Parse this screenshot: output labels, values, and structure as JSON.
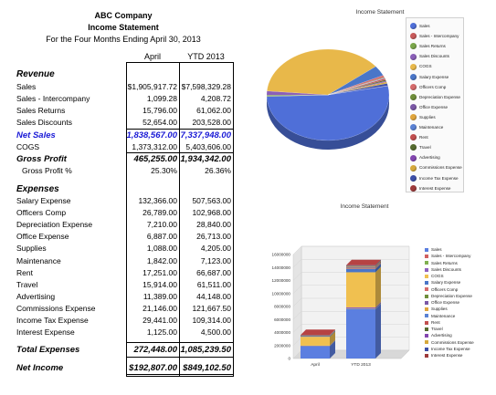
{
  "report": {
    "company": "ABC Company",
    "title": "Income Statement",
    "period": "For the Four Months Ending April 30, 2013",
    "col_april": "April",
    "col_ytd": "YTD 2013",
    "revenue_heading": "Revenue",
    "expenses_heading": "Expenses",
    "revenue": [
      {
        "label": "Sales",
        "april": "$1,905,917.72",
        "ytd": "$7,598,329.28"
      },
      {
        "label": "Sales - Intercompany",
        "april": "1,099.28",
        "ytd": "4,208.72"
      },
      {
        "label": "Sales Returns",
        "april": "15,796.00",
        "ytd": "61,062.00"
      },
      {
        "label": "Sales Discounts",
        "april": "52,654.00",
        "ytd": "203,528.00"
      }
    ],
    "net_sales": {
      "label": "Net Sales",
      "april": "1,838,567.00",
      "ytd": "7,337,948.00"
    },
    "cogs": {
      "label": "COGS",
      "april": "1,373,312.00",
      "ytd": "5,403,606.00"
    },
    "gross_profit": {
      "label": "Gross Profit",
      "april": "465,255.00",
      "ytd": "1,934,342.00"
    },
    "gross_profit_pct": {
      "label": "Gross Profit %",
      "april": "25.30%",
      "ytd": "26.36%"
    },
    "expenses": [
      {
        "label": "Salary Expense",
        "april": "132,366.00",
        "ytd": "507,563.00"
      },
      {
        "label": "Officers Comp",
        "april": "26,789.00",
        "ytd": "102,968.00"
      },
      {
        "label": "Depreciation Expense",
        "april": "7,210.00",
        "ytd": "28,840.00"
      },
      {
        "label": "Office Expense",
        "april": "6,887.00",
        "ytd": "26,713.00"
      },
      {
        "label": "Supplies",
        "april": "1,088.00",
        "ytd": "4,205.00"
      },
      {
        "label": "Maintenance",
        "april": "1,842.00",
        "ytd": "7,123.00"
      },
      {
        "label": "Rent",
        "april": "17,251.00",
        "ytd": "66,687.00"
      },
      {
        "label": "Travel",
        "april": "15,914.00",
        "ytd": "61,511.00"
      },
      {
        "label": "Advertising",
        "april": "11,389.00",
        "ytd": "44,148.00"
      },
      {
        "label": "Commissions Expense",
        "april": "21,146.00",
        "ytd": "121,667.50"
      },
      {
        "label": "Income Tax Expense",
        "april": "29,441.00",
        "ytd": "109,314.00"
      },
      {
        "label": "Interest Expense",
        "april": "1,125.00",
        "ytd": "4,500.00"
      }
    ],
    "total_expenses": {
      "label": "Total Expenses",
      "april": "272,448.00",
      "ytd": "1,085,239.50"
    },
    "net_income": {
      "label": "Net Income",
      "april": "$192,807.00",
      "ytd": "$849,102.50"
    }
  },
  "chart_data": [
    {
      "type": "pie",
      "title": "Income Statement",
      "legend_position": "right",
      "labels": [
        "Sales",
        "Sales - Intercompany",
        "Sales Returns",
        "Sales Discounts",
        "COGS",
        "Salary Expense",
        "Officers Comp",
        "Depreciation Expense",
        "Office Expense",
        "Supplies",
        "Maintenance",
        "Rent",
        "Travel",
        "Advertising",
        "Commissions Expense",
        "Income Tax Expense",
        "Interest Expense"
      ],
      "colors": [
        "#4f6fd8",
        "#c85a5a",
        "#7aa64a",
        "#8a5fb8",
        "#e8b84a",
        "#4a76c8",
        "#d56b6b",
        "#6f8e3a",
        "#7b58a6",
        "#e0a53c",
        "#5a82d4",
        "#c24f4f",
        "#556b2f",
        "#8346b0",
        "#d6a93c",
        "#3d4fa8",
        "#9e3a3a"
      ],
      "values": [
        1905917.72,
        1099.28,
        15796.0,
        52654.0,
        1373312.0,
        132366.0,
        26789.0,
        7210.0,
        6887.0,
        1088.0,
        1842.0,
        17251.0,
        15914.0,
        11389.0,
        21146.0,
        29441.0,
        1125.0
      ]
    },
    {
      "type": "bar",
      "stacked": true,
      "title": "Income Statement",
      "categories": [
        "April",
        "YTD 2013"
      ],
      "ylim": [
        0,
        16000000
      ],
      "yticks": [
        "16000000",
        "14000000",
        "12000000",
        "10000000",
        "8000000",
        "6000000",
        "4000000",
        "2000000",
        "0"
      ],
      "legend_position": "right",
      "series": [
        {
          "name": "Sales",
          "color": "#5b7fe0",
          "values": [
            1905917.72,
            7598329.28
          ]
        },
        {
          "name": "Sales - Intercompany",
          "color": "#d06060",
          "values": [
            1099.28,
            4208.72
          ]
        },
        {
          "name": "Sales Returns",
          "color": "#80b050",
          "values": [
            15796.0,
            61062.0
          ]
        },
        {
          "name": "Sales Discounts",
          "color": "#9060c0",
          "values": [
            52654.0,
            203528.0
          ]
        },
        {
          "name": "COGS",
          "color": "#f0c050",
          "values": [
            1373312.0,
            5403606.0
          ]
        },
        {
          "name": "Salary Expense",
          "color": "#4a76c8",
          "values": [
            132366.0,
            507563.0
          ]
        },
        {
          "name": "Officers Comp",
          "color": "#d56b6b",
          "values": [
            26789.0,
            102968.0
          ]
        },
        {
          "name": "Depreciation Expense",
          "color": "#6f8e3a",
          "values": [
            7210.0,
            28840.0
          ]
        },
        {
          "name": "Office Expense",
          "color": "#7b58a6",
          "values": [
            6887.0,
            26713.0
          ]
        },
        {
          "name": "Supplies",
          "color": "#e0a53c",
          "values": [
            1088.0,
            4205.0
          ]
        },
        {
          "name": "Maintenance",
          "color": "#5a82d4",
          "values": [
            1842.0,
            7123.0
          ]
        },
        {
          "name": "Rent",
          "color": "#c24f4f",
          "values": [
            17251.0,
            66687.0
          ]
        },
        {
          "name": "Travel",
          "color": "#556b2f",
          "values": [
            15914.0,
            61511.0
          ]
        },
        {
          "name": "Advertising",
          "color": "#8346b0",
          "values": [
            11389.0,
            44148.0
          ]
        },
        {
          "name": "Commissions Expense",
          "color": "#d6a93c",
          "values": [
            21146.0,
            121667.5
          ]
        },
        {
          "name": "Income Tax Expense",
          "color": "#3d4fa8",
          "values": [
            29441.0,
            109314.0
          ]
        },
        {
          "name": "Interest Expense",
          "color": "#9e3a3a",
          "values": [
            1125.0,
            4500.0
          ]
        }
      ]
    }
  ]
}
